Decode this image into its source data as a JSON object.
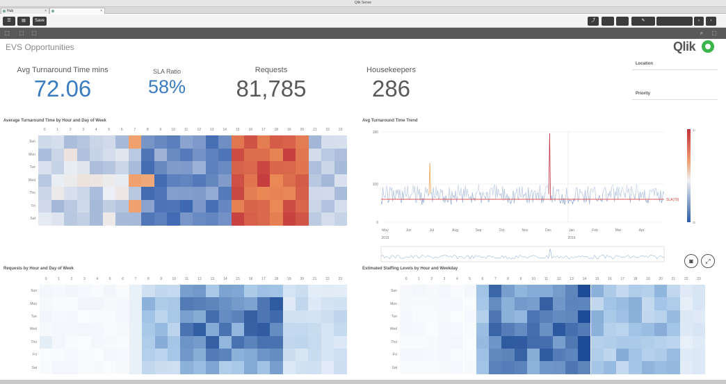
{
  "window": {
    "title": "Qlik Sense"
  },
  "tabs": [
    {
      "label": "Hub"
    },
    {
      "label": ""
    }
  ],
  "toolbar": {
    "save_label": "Save"
  },
  "sheet": {
    "title": "EVS Opportunities"
  },
  "logo": {
    "text": "Qlik"
  },
  "kpis": [
    {
      "label": "Avg Turnaround Time mins",
      "value": "72.06",
      "color": "#3b7bbf"
    },
    {
      "label": "SLA Ratio",
      "value": "58%",
      "color": "#3b7bbf"
    },
    {
      "label": "Requests",
      "value": "81,785",
      "color": "#595959"
    },
    {
      "label": "Housekeepers",
      "value": "286",
      "color": "#595959"
    }
  ],
  "filters": [
    {
      "label": "Location"
    },
    {
      "label": "Priority"
    }
  ],
  "heatmaps": {
    "hours": [
      "0",
      "1",
      "2",
      "3",
      "4",
      "5",
      "6",
      "7",
      "8",
      "9",
      "10",
      "11",
      "12",
      "13",
      "14",
      "15",
      "16",
      "17",
      "18",
      "19",
      "20",
      "21",
      "22",
      "23"
    ],
    "days": [
      "Sun",
      "Mon",
      "Tue",
      "Wed",
      "Thu",
      "Fri",
      "Sat"
    ],
    "turnaround": {
      "title": "Average Turnaround Time by Hour and Day of Week"
    },
    "requests": {
      "title": "Requests by Hour and Day of Week"
    },
    "staffing": {
      "title": "Estimated Staffing Levels by Hour and Weekday"
    }
  },
  "trend": {
    "title": "Avg Turnaround Time Trend",
    "y_ticks": [
      "180",
      "100",
      "0"
    ],
    "x_months": [
      "May",
      "Jun",
      "Jul",
      "Aug",
      "Sep",
      "Oct",
      "Nov",
      "Dec",
      "Jan",
      "Feb",
      "Mar",
      "Apr"
    ],
    "x_years": [
      "2015",
      "2016"
    ],
    "legend_max": "148.76",
    "legend_min": "37.14",
    "sla_label": "SLA(70)"
  },
  "colors": {
    "heat_low": "#2c66b3",
    "heat_high": "#c0323b",
    "blue_dark": "#2a5aa8"
  }
}
